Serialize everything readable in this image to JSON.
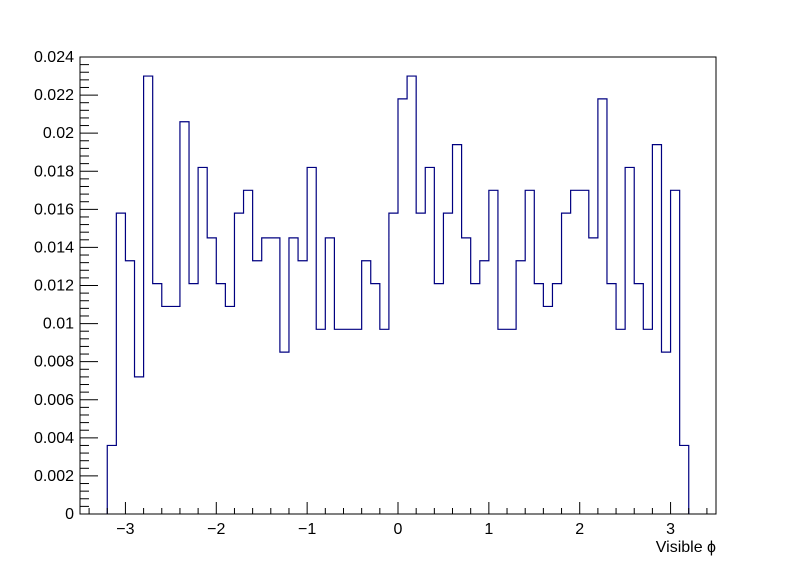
{
  "chart_data": {
    "type": "histogram",
    "title": "",
    "xlabel": "Visible ϕ",
    "ylabel": "",
    "xlim": [
      -3.5,
      3.5
    ],
    "ylim": [
      0,
      0.024
    ],
    "bin_low": -3.2,
    "bin_width": 0.1,
    "values": [
      0.0036,
      0.0158,
      0.0133,
      0.0072,
      0.023,
      0.0121,
      0.0109,
      0.0109,
      0.0206,
      0.0121,
      0.0182,
      0.0145,
      0.0121,
      0.0109,
      0.0158,
      0.017,
      0.0133,
      0.0145,
      0.0145,
      0.0085,
      0.0145,
      0.0133,
      0.0182,
      0.0097,
      0.0145,
      0.0097,
      0.0097,
      0.0097,
      0.0133,
      0.0121,
      0.0097,
      0.0158,
      0.0218,
      0.023,
      0.0158,
      0.0182,
      0.0121,
      0.0158,
      0.0194,
      0.0145,
      0.0121,
      0.0133,
      0.017,
      0.0097,
      0.0097,
      0.0133,
      0.017,
      0.0121,
      0.0109,
      0.0121,
      0.0158,
      0.017,
      0.017,
      0.0145,
      0.0218,
      0.0121,
      0.0097,
      0.0182,
      0.0121,
      0.0097,
      0.0194,
      0.0085,
      0.017,
      0.0036
    ],
    "x_ticks": [
      -3,
      -2,
      -1,
      0,
      1,
      2,
      3
    ],
    "x_tick_labels": [
      "−3",
      "−2",
      "−1",
      "0",
      "1",
      "2",
      "3"
    ],
    "y_ticks": [
      0,
      0.002,
      0.004,
      0.006,
      0.008,
      0.01,
      0.012,
      0.014,
      0.016,
      0.018,
      0.02,
      0.022,
      0.024
    ],
    "y_tick_labels": [
      "0",
      "0.002",
      "0.004",
      "0.006",
      "0.008",
      "0.01",
      "0.012",
      "0.014",
      "0.016",
      "0.018",
      "0.02",
      "0.022",
      "0.024"
    ],
    "line_color": "#000080",
    "grid": false,
    "legend": "none"
  }
}
